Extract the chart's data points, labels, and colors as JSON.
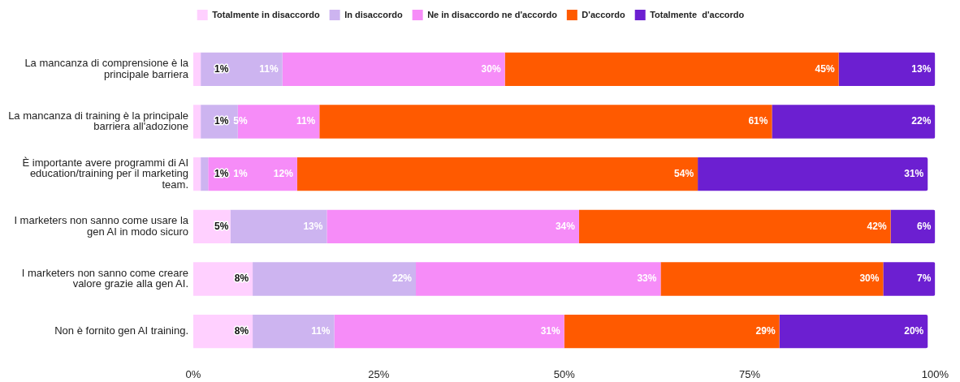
{
  "chart_data": {
    "type": "bar",
    "orientation": "horizontal",
    "stacked": true,
    "legend": "top",
    "categories": [
      "La mancanza di comprensione è la principale barriera",
      "La mancanza di training è la principale barriera all'adozione",
      "È importante avere programmi di AI education/training per il marketing team.",
      "I marketers non sanno come usare la gen AI in modo sicuro",
      "I marketers non sanno come creare valore grazie alla gen AI.",
      "Non è fornito gen AI training."
    ],
    "series": [
      {
        "name": "Totalmente in disaccordo",
        "color": "#ffd0ff",
        "values": [
          1,
          1,
          1,
          5,
          8,
          8
        ],
        "value_labels": [
          "1%",
          "1%",
          "1%",
          "5%",
          "8%",
          "8%"
        ]
      },
      {
        "name": "In disaccordo",
        "color": "#cdb4f0",
        "values": [
          11,
          5,
          1,
          13,
          22,
          11
        ],
        "value_labels": [
          "11%",
          "5%",
          "1%",
          "13%",
          "22%",
          "11%"
        ]
      },
      {
        "name": "Ne in disaccordo ne d'accordo",
        "color": "#f68cf8",
        "values": [
          30,
          11,
          12,
          34,
          33,
          31
        ],
        "value_labels": [
          "30%",
          "11%",
          "12%",
          "34%",
          "33%",
          "31%"
        ]
      },
      {
        "name": "D'accordo",
        "color": "#ff5a00",
        "values": [
          45,
          61,
          54,
          42,
          30,
          29
        ],
        "value_labels": [
          "45%",
          "61%",
          "54%",
          "42%",
          "30%",
          "29%"
        ]
      },
      {
        "name": "Totalmente  d'accordo",
        "color": "#6c1fd1",
        "values": [
          13,
          22,
          31,
          6,
          7,
          20
        ],
        "value_labels": [
          "13%",
          "22%",
          "31%",
          "6%",
          "7%",
          "20%"
        ]
      }
    ],
    "xlim": [
      0,
      100
    ],
    "xticks": [
      {
        "value": 0,
        "label": "0%"
      },
      {
        "value": 25,
        "label": "25%"
      },
      {
        "value": 50,
        "label": "50%"
      },
      {
        "value": 75,
        "label": "75%"
      },
      {
        "value": 100,
        "label": "100%"
      }
    ]
  }
}
